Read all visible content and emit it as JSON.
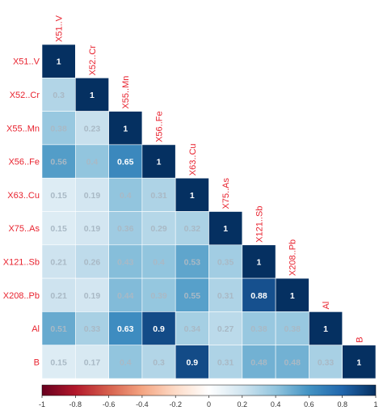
{
  "chart_data": {
    "type": "heatmap",
    "variables": [
      "X51..V",
      "X52..Cr",
      "X55..Mn",
      "X56..Fe",
      "X63..Cu",
      "X75..As",
      "X121..Sb",
      "X208..Pb",
      "Al",
      "B"
    ],
    "matrix": [
      [
        1
      ],
      [
        0.3,
        1
      ],
      [
        0.38,
        0.23,
        1
      ],
      [
        0.56,
        0.4,
        0.65,
        1
      ],
      [
        0.15,
        0.19,
        0.4,
        0.31,
        1
      ],
      [
        0.15,
        0.19,
        0.36,
        0.29,
        0.32,
        1
      ],
      [
        0.21,
        0.26,
        0.43,
        0.4,
        0.53,
        0.35,
        1
      ],
      [
        0.21,
        0.19,
        0.44,
        0.39,
        0.55,
        0.31,
        0.88,
        1
      ],
      [
        0.51,
        0.33,
        0.63,
        0.9,
        0.34,
        0.27,
        0.38,
        0.38,
        1
      ],
      [
        0.15,
        0.17,
        0.4,
        0.3,
        0.9,
        0.31,
        0.48,
        0.48,
        0.33,
        1
      ]
    ],
    "colorbar": {
      "range": [
        -1,
        1
      ],
      "ticks": [
        "-1",
        "-0.8",
        "-0.6",
        "-0.4",
        "-0.2",
        "0",
        "0.2",
        "0.4",
        "0.6",
        "0.8",
        "1"
      ]
    },
    "colors": {
      "negative": "#67001f",
      "zero": "#ffffff",
      "positive": "#053061",
      "labels": "#e8232f"
    }
  }
}
